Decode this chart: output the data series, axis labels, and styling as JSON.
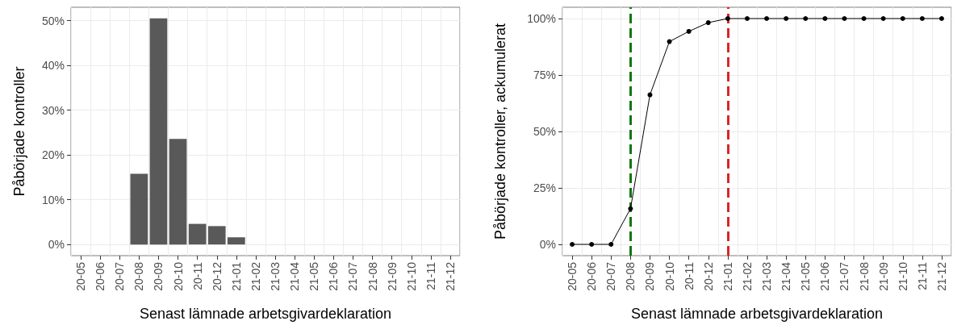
{
  "chart_data": [
    {
      "type": "bar",
      "xlabel": "Senast lämnade arbetsgivardeklaration",
      "ylabel": "Påbörjade kontroller",
      "categories": [
        "20-05",
        "20-06",
        "20-07",
        "20-08",
        "20-09",
        "20-10",
        "20-11",
        "20-12",
        "21-01",
        "21-02",
        "21-03",
        "21-04",
        "21-05",
        "21-06",
        "21-07",
        "21-08",
        "21-09",
        "21-10",
        "21-11",
        "21-12"
      ],
      "series": [
        {
          "color": "#595959",
          "values": [
            0,
            0,
            0,
            15.8,
            50.5,
            23.6,
            4.6,
            4.1,
            1.6,
            0,
            0,
            0,
            0,
            0,
            0,
            0,
            0,
            0,
            0,
            0
          ]
        }
      ],
      "ylim": [
        -2.5,
        53
      ],
      "yticks": [
        {
          "value": 0,
          "label": "0%"
        },
        {
          "value": 10,
          "label": "10%"
        },
        {
          "value": 20,
          "label": "20%"
        },
        {
          "value": 30,
          "label": "30%"
        },
        {
          "value": 40,
          "label": "40%"
        },
        {
          "value": 50,
          "label": "50%"
        }
      ],
      "grid": true
    },
    {
      "type": "line",
      "xlabel": "Senast lämnade arbetsgivardeklaration",
      "ylabel": "Påbörjade kontroller, ackumulerat",
      "categories": [
        "20-05",
        "20-06",
        "20-07",
        "20-08",
        "20-09",
        "20-10",
        "20-11",
        "20-12",
        "21-01",
        "21-02",
        "21-03",
        "21-04",
        "21-05",
        "21-06",
        "21-07",
        "21-08",
        "21-09",
        "21-10",
        "21-11",
        "21-12"
      ],
      "series": [
        {
          "color": "#000000",
          "values": [
            0,
            0,
            0,
            15.8,
            66.2,
            89.8,
            94.3,
            98.2,
            100,
            100,
            100,
            100,
            100,
            100,
            100,
            100,
            100,
            100,
            100,
            100
          ]
        }
      ],
      "ylim": [
        -5,
        105
      ],
      "yticks": [
        {
          "value": 0,
          "label": "0%"
        },
        {
          "value": 25,
          "label": "25%"
        },
        {
          "value": 50,
          "label": "50%"
        },
        {
          "value": 75,
          "label": "75%"
        },
        {
          "value": 100,
          "label": "100%"
        }
      ],
      "grid": true,
      "marker": "circle",
      "line_style": "solid",
      "ref_lines": [
        {
          "axis": "x",
          "value": "20-08",
          "color": "#117711",
          "line_style": "dashed"
        },
        {
          "axis": "x",
          "value": "21-01",
          "color": "#d92626",
          "line_style": "dashed"
        }
      ]
    }
  ]
}
